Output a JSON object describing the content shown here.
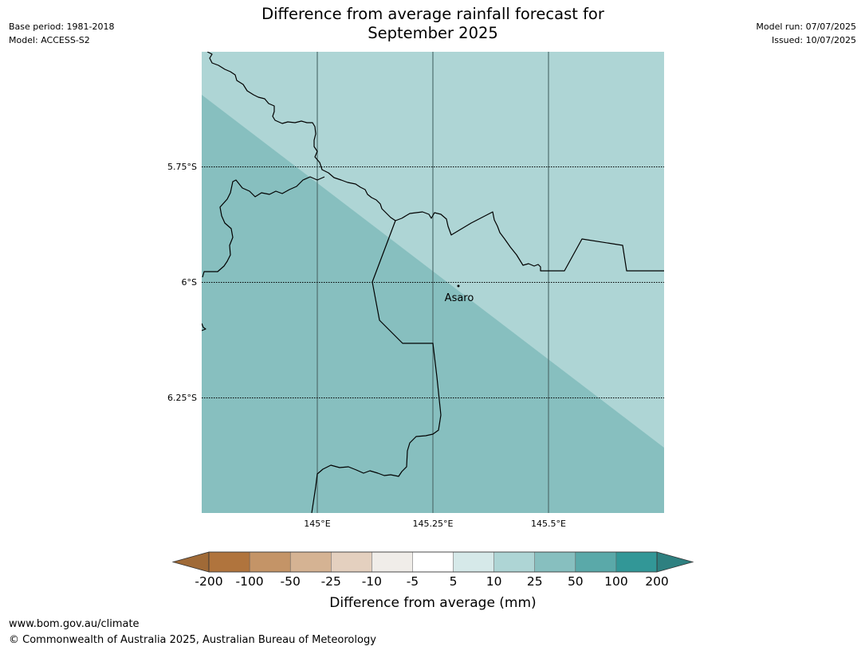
{
  "title_line1": "Difference from average rainfall forecast for",
  "title_line2": "September 2025",
  "meta_left": {
    "base_period": "Base period: 1981-2018",
    "model": "Model: ACCESS-S2"
  },
  "meta_right": {
    "model_run": "Model run: 07/07/2025",
    "issued": "Issued: 10/07/2025"
  },
  "map": {
    "lat_labels": [
      "5.75°S",
      "6°S",
      "6.25°S"
    ],
    "lon_labels": [
      "145°E",
      "145.25°E",
      "145.5°E"
    ],
    "places": [
      {
        "name": "Asaro"
      }
    ],
    "region_colors": {
      "category_10_25": "#aed5d5",
      "category_25_50": "#87bfbf"
    }
  },
  "colorbar": {
    "title": "Difference from average (mm)",
    "ticks": [
      "-200",
      "-100",
      "-50",
      "-25",
      "-10",
      "-5",
      "5",
      "10",
      "25",
      "50",
      "100",
      "200"
    ],
    "low_extend_color": "#a06a37",
    "high_extend_color": "#2e8080",
    "colors": [
      "#b0743d",
      "#c49467",
      "#d5b393",
      "#e4d0bf",
      "#f0ede9",
      "#ffffff",
      "#d6e9e9",
      "#aed5d5",
      "#87bfbf",
      "#5aa9a9",
      "#329797"
    ]
  },
  "footer": {
    "url": "www.bom.gov.au/climate",
    "copyright": "© Commonwealth of Australia 2025, Australian Bureau of Meteorology"
  }
}
